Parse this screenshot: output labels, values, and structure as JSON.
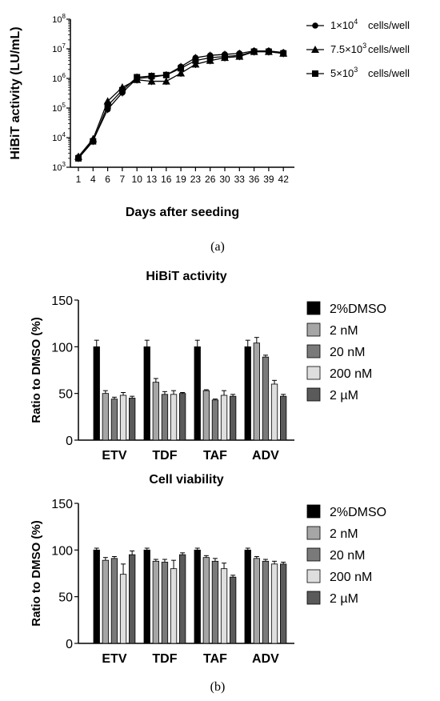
{
  "panel_labels": {
    "a": "(a)",
    "b": "(b)"
  },
  "chart_data": [
    {
      "type": "line",
      "title": "",
      "xlabel": "Days after seeding",
      "ylabel": "HiBiT activity (LU/mL)",
      "y_scale": "log",
      "ylim": [
        1000,
        100000000
      ],
      "y_ticks": [
        {
          "value": 1000,
          "base": "10",
          "exp": "3"
        },
        {
          "value": 10000,
          "base": "10",
          "exp": "4"
        },
        {
          "value": 100000,
          "base": "10",
          "exp": "5"
        },
        {
          "value": 1000000,
          "base": "10",
          "exp": "6"
        },
        {
          "value": 10000000,
          "base": "10",
          "exp": "7"
        },
        {
          "value": 100000000,
          "base": "10",
          "exp": "8"
        }
      ],
      "x": [
        "1",
        "4",
        "6",
        "7",
        "10",
        "13",
        "16",
        "19",
        "23",
        "26",
        "30",
        "33",
        "36",
        "39",
        "42"
      ],
      "legend_position": "right",
      "series": [
        {
          "name_base": "1×10",
          "name_exp": "4",
          "name_unit": "cells/well",
          "marker": "circle",
          "values": [
            2200,
            8000,
            90000,
            330000,
            1000000,
            1100000,
            1300000,
            2500000,
            5000000,
            6000000,
            6500000,
            7000000,
            8500000,
            8500000,
            7500000
          ]
        },
        {
          "name_base": "7.5×10",
          "name_exp": "3",
          "name_unit": "cells/well",
          "marker": "triangle",
          "values": [
            2300,
            9000,
            170000,
            500000,
            900000,
            800000,
            800000,
            1500000,
            3000000,
            4000000,
            5000000,
            5500000,
            8000000,
            8000000,
            7000000
          ]
        },
        {
          "name_base": "5×10",
          "name_exp": "3",
          "name_unit": "cells/well",
          "marker": "square",
          "values": [
            2000,
            7500,
            120000,
            400000,
            1100000,
            1200000,
            1300000,
            2200000,
            4000000,
            5000000,
            5500000,
            6000000,
            8000000,
            8000000,
            7000000
          ]
        }
      ]
    },
    {
      "type": "bar",
      "title": "HiBiT activity",
      "xlabel": "",
      "ylabel": "Ratio to DMSO (%)",
      "ylim": [
        0,
        150
      ],
      "y_ticks": [
        0,
        50,
        100,
        150
      ],
      "categories": [
        "ETV",
        "TDF",
        "TAF",
        "ADV"
      ],
      "legend_position": "right",
      "series": [
        {
          "name": "2%DMSO",
          "color": "#000000",
          "values": [
            100,
            100,
            100,
            100
          ],
          "errors": [
            7,
            7,
            7,
            7
          ]
        },
        {
          "name": "2 nM",
          "color": "#a6a6a6",
          "values": [
            50,
            62,
            53,
            104
          ],
          "errors": [
            3,
            4,
            1,
            6
          ]
        },
        {
          "name": "20 nM",
          "color": "#7a7a7a",
          "values": [
            44,
            49,
            43,
            89
          ],
          "errors": [
            2,
            3,
            1,
            2
          ]
        },
        {
          "name": "200 nM",
          "color": "#dedede",
          "values": [
            48,
            49,
            48,
            60
          ],
          "errors": [
            3,
            4,
            5,
            4
          ]
        },
        {
          "name": "2 µM",
          "color": "#5a5a5a",
          "values": [
            45,
            50,
            47,
            47
          ],
          "errors": [
            2,
            1,
            2,
            2
          ]
        }
      ]
    },
    {
      "type": "bar",
      "title": "Cell viability",
      "xlabel": "",
      "ylabel": "Ratio to DMSO (%)",
      "ylim": [
        0,
        150
      ],
      "y_ticks": [
        0,
        50,
        100,
        150
      ],
      "categories": [
        "ETV",
        "TDF",
        "TAF",
        "ADV"
      ],
      "legend_position": "right",
      "series": [
        {
          "name": "2%DMSO",
          "color": "#000000",
          "values": [
            100,
            100,
            100,
            100
          ],
          "errors": [
            2,
            2,
            2,
            2
          ]
        },
        {
          "name": "2 nM",
          "color": "#a6a6a6",
          "values": [
            89,
            88,
            92,
            91
          ],
          "errors": [
            3,
            2,
            2,
            2
          ]
        },
        {
          "name": "20 nM",
          "color": "#7a7a7a",
          "values": [
            91,
            87,
            88,
            88
          ],
          "errors": [
            2,
            3,
            3,
            2
          ]
        },
        {
          "name": "200 nM",
          "color": "#dedede",
          "values": [
            74,
            80,
            80,
            85
          ],
          "errors": [
            11,
            9,
            6,
            3
          ]
        },
        {
          "name": "2 µM",
          "color": "#5a5a5a",
          "values": [
            95,
            95,
            71,
            85
          ],
          "errors": [
            4,
            2,
            2,
            2
          ]
        }
      ]
    }
  ]
}
